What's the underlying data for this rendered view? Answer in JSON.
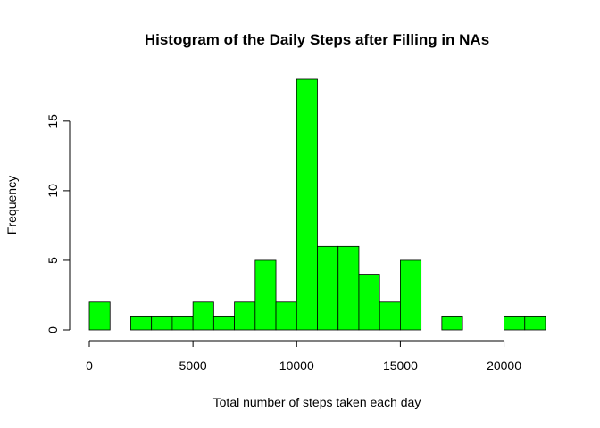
{
  "chart_data": {
    "type": "bar",
    "title": "Histogram of the Daily Steps after Filling in NAs",
    "xlabel": "Total number of steps taken each day",
    "ylabel": "Frequency",
    "bin_width": 1000,
    "bin_starts": [
      0,
      1000,
      2000,
      3000,
      4000,
      5000,
      6000,
      7000,
      8000,
      9000,
      10000,
      11000,
      12000,
      13000,
      14000,
      15000,
      16000,
      17000,
      18000,
      19000,
      20000,
      21000
    ],
    "values": [
      2,
      0,
      1,
      1,
      1,
      2,
      1,
      2,
      5,
      2,
      18,
      6,
      6,
      4,
      2,
      5,
      0,
      1,
      0,
      0,
      1,
      1
    ],
    "xlim": [
      0,
      22000
    ],
    "ylim": [
      0,
      18
    ],
    "x_ticks": [
      0,
      5000,
      10000,
      15000,
      20000
    ],
    "x_tick_labels": [
      "0",
      "5000",
      "10000",
      "15000",
      "20000"
    ],
    "y_ticks": [
      0,
      5,
      10,
      15
    ],
    "y_tick_labels": [
      "0",
      "5",
      "10",
      "15"
    ],
    "bar_color": "#00ff00",
    "grid": false
  }
}
